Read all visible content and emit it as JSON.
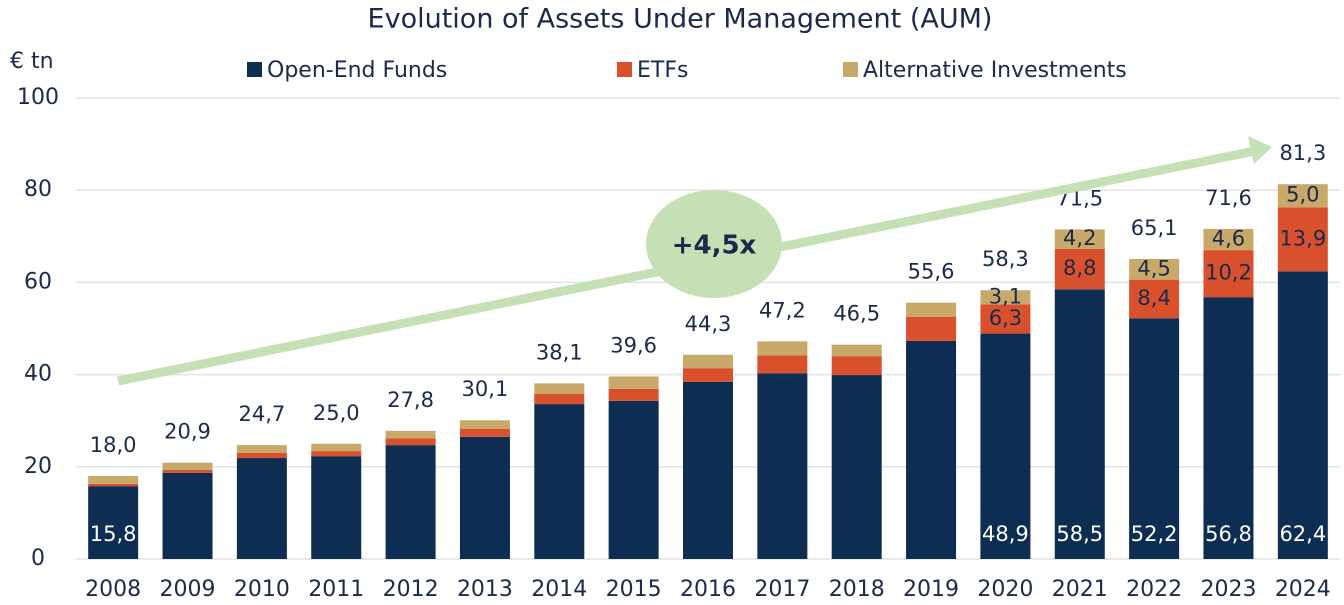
{
  "chart_data": {
    "type": "stacked_bar",
    "title": "Evolution of Assets Under Management (AUM)",
    "y_label": "€ tn",
    "annotation": "+4,5x",
    "categories": [
      "2008",
      "2009",
      "2010",
      "2011",
      "2012",
      "2013",
      "2014",
      "2015",
      "2016",
      "2017",
      "2018",
      "2019",
      "2020",
      "2021",
      "2022",
      "2023",
      "2024"
    ],
    "series": [
      {
        "name": "Open-End Funds",
        "color": "#0d2d52",
        "label_color": "#ffffff",
        "values": [
          15.8,
          18.7,
          21.9,
          22.3,
          24.7,
          26.5,
          33.6,
          34.3,
          38.4,
          40.3,
          39.9,
          47.3,
          48.9,
          58.5,
          52.2,
          56.8,
          62.4
        ],
        "value_labels": [
          "15,8",
          null,
          null,
          null,
          null,
          null,
          null,
          null,
          null,
          null,
          null,
          null,
          "48,9",
          "58,5",
          "52,2",
          "56,8",
          "62,4"
        ]
      },
      {
        "name": "ETFs",
        "color": "#d9512c",
        "label_color": "#1b2a4a",
        "values": [
          0.5,
          0.6,
          1.1,
          1.1,
          1.5,
          1.7,
          2.2,
          2.6,
          3.0,
          3.9,
          4.1,
          5.2,
          6.3,
          8.8,
          8.4,
          10.2,
          13.9
        ],
        "value_labels": [
          null,
          null,
          null,
          null,
          null,
          null,
          null,
          null,
          null,
          null,
          null,
          null,
          "6,3",
          "8,8",
          "8,4",
          "10,2",
          "13,9"
        ]
      },
      {
        "name": "Alternative Investments",
        "color": "#c9a96a",
        "label_color": "#1b2a4a",
        "values": [
          1.7,
          1.6,
          1.7,
          1.6,
          1.6,
          1.9,
          2.3,
          2.7,
          2.9,
          3.0,
          2.5,
          3.1,
          3.1,
          4.2,
          4.5,
          4.6,
          5.0
        ],
        "value_labels": [
          null,
          null,
          null,
          null,
          null,
          null,
          null,
          null,
          null,
          null,
          null,
          null,
          "3,1",
          "4,2",
          "4,5",
          "4,6",
          "5,0"
        ]
      }
    ],
    "totals": [
      18.0,
      20.9,
      24.7,
      25.0,
      27.8,
      30.1,
      38.1,
      39.6,
      44.3,
      47.2,
      46.5,
      55.6,
      58.3,
      71.5,
      65.1,
      71.6,
      81.3
    ],
    "total_labels": [
      "18,0",
      "20,9",
      "24,7",
      "25,0",
      "27,8",
      "30,1",
      "38,1",
      "39,6",
      "44,3",
      "47,2",
      "46,5",
      "55,6",
      "58,3",
      "71,5",
      "65,1",
      "71,6",
      "81,3"
    ],
    "ylim": [
      0,
      100
    ],
    "yticks": [
      0,
      20,
      40,
      60,
      80,
      100
    ],
    "grid": true
  }
}
